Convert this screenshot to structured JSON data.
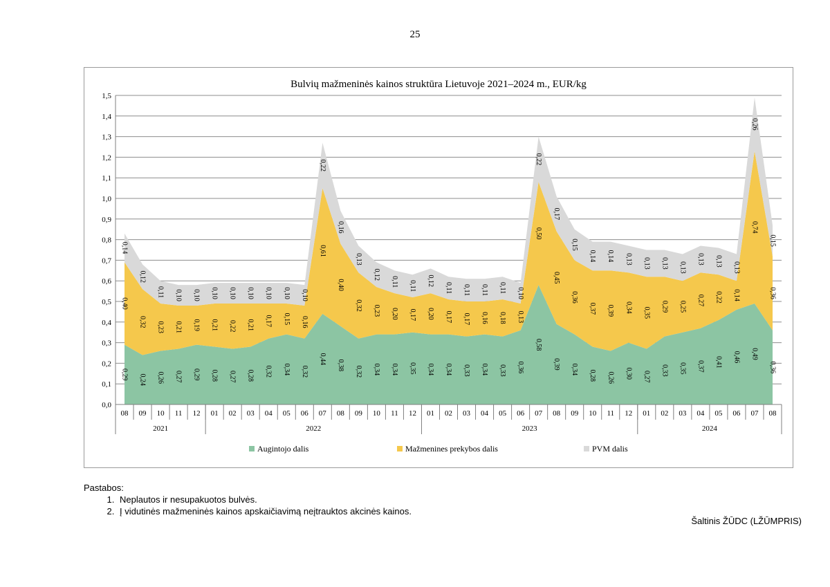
{
  "page": {
    "number": "25"
  },
  "chart_data": {
    "type": "area",
    "stacked": true,
    "title": "Bulvių mažmeninės kainos struktūra Lietuvoje 2021–2024 m., EUR/kg",
    "xlabel": "",
    "ylabel": "",
    "ylim": [
      0,
      1.5
    ],
    "ytick_step": 0.1,
    "ytick_labels": [
      "0,0",
      "0,1",
      "0,2",
      "0,3",
      "0,4",
      "0,5",
      "0,6",
      "0,7",
      "0,8",
      "0,9",
      "1,0",
      "1,1",
      "1,2",
      "1,3",
      "1,4",
      "1,5"
    ],
    "grid": true,
    "legend_position": "bottom",
    "categories": [
      "08",
      "09",
      "10",
      "11",
      "12",
      "01",
      "02",
      "03",
      "04",
      "05",
      "06",
      "07",
      "08",
      "09",
      "10",
      "11",
      "12",
      "01",
      "02",
      "03",
      "04",
      "05",
      "06",
      "07",
      "08",
      "09",
      "10",
      "11",
      "12",
      "01",
      "02",
      "03",
      "04",
      "05",
      "06",
      "07",
      "08"
    ],
    "year_groups": [
      {
        "label": "2021",
        "count": 5
      },
      {
        "label": "2022",
        "count": 12
      },
      {
        "label": "2023",
        "count": 12
      },
      {
        "label": "2024",
        "count": 8
      }
    ],
    "series": [
      {
        "name": "Augintojo dalis",
        "color": "#8cc5a3",
        "values": [
          0.29,
          0.24,
          0.26,
          0.27,
          0.29,
          0.28,
          0.27,
          0.28,
          0.32,
          0.34,
          0.32,
          0.44,
          0.38,
          0.32,
          0.34,
          0.34,
          0.35,
          0.34,
          0.34,
          0.33,
          0.34,
          0.33,
          0.36,
          0.58,
          0.39,
          0.34,
          0.28,
          0.26,
          0.3,
          0.27,
          0.33,
          0.35,
          0.37,
          0.41,
          0.46,
          0.49,
          0.36
        ],
        "labels": [
          "0,29",
          "0,24",
          "0,26",
          "0,27",
          "0,29",
          "0,28",
          "0,27",
          "0,28",
          "0,32",
          "0,34",
          "0,32",
          "0,44",
          "0,38",
          "0,32",
          "0,34",
          "0,34",
          "0,35",
          "0,34",
          "0,34",
          "0,33",
          "0,34",
          "0,33",
          "0,36",
          "0,58",
          "0,39",
          "0,34",
          "0,28",
          "0,26",
          "0,30",
          "0,27",
          "0,33",
          "0,35",
          "0,37",
          "0,41",
          "0,46",
          "0,49",
          "0,36"
        ]
      },
      {
        "name": "Mažmenines prekybos dalis",
        "color": "#f5c84c",
        "values": [
          0.4,
          0.32,
          0.23,
          0.21,
          0.19,
          0.21,
          0.22,
          0.21,
          0.17,
          0.15,
          0.16,
          0.61,
          0.4,
          0.32,
          0.23,
          0.2,
          0.17,
          0.2,
          0.17,
          0.17,
          0.16,
          0.18,
          0.13,
          0.5,
          0.45,
          0.36,
          0.37,
          0.39,
          0.34,
          0.35,
          0.29,
          0.25,
          0.27,
          0.22,
          0.14,
          0.74,
          0.36
        ],
        "labels": [
          "0,40",
          "0,32",
          "0,23",
          "0,21",
          "0,19",
          "0,21",
          "0,22",
          "0,21",
          "0,17",
          "0,15",
          "0,16",
          "0,61",
          "0,40",
          "0,32",
          "0,23",
          "0,20",
          "0,17",
          "0,20",
          "0,17",
          "0,17",
          "0,16",
          "0,18",
          "0,13",
          "0,50",
          "0,45",
          "0,36",
          "0,37",
          "0,39",
          "0,34",
          "0,35",
          "0,29",
          "0,25",
          "0,27",
          "0,22",
          "0,14",
          "0,74",
          "0,36"
        ]
      },
      {
        "name": "PVM dalis",
        "color": "#d9d9d9",
        "values": [
          0.14,
          0.12,
          0.11,
          0.1,
          0.1,
          0.1,
          0.1,
          0.1,
          0.1,
          0.1,
          0.1,
          0.22,
          0.16,
          0.13,
          0.12,
          0.11,
          0.11,
          0.12,
          0.11,
          0.11,
          0.11,
          0.11,
          0.1,
          0.22,
          0.17,
          0.15,
          0.14,
          0.14,
          0.13,
          0.13,
          0.13,
          0.13,
          0.13,
          0.13,
          0.13,
          0.26,
          0.15
        ],
        "labels": [
          "0,14",
          "0,12",
          "0,11",
          "0,10",
          "0,10",
          "0,10",
          "0,10",
          "0,10",
          "0,10",
          "0,10",
          "0,10",
          "0,22",
          "0,16",
          "0,13",
          "0,12",
          "0,11",
          "0,11",
          "0,12",
          "0,11",
          "0,11",
          "0,11",
          "0,11",
          "0,10",
          "0,22",
          "0,17",
          "0,15",
          "0,14",
          "0,14",
          "0,13",
          "0,13",
          "0,13",
          "0,13",
          "0,13",
          "0,13",
          "0,13",
          "0,26",
          "0,15"
        ]
      }
    ]
  },
  "notes": {
    "heading": "Pastabos:",
    "items": [
      "Neplautos ir nesupakuotos bulvės.",
      "Į vidutinės mažmeninės kainos apskaičiavimą neįtrauktos akcinės kainos."
    ]
  },
  "source": "Šaltinis ŽŪDC (LŽŪMPRIS)"
}
